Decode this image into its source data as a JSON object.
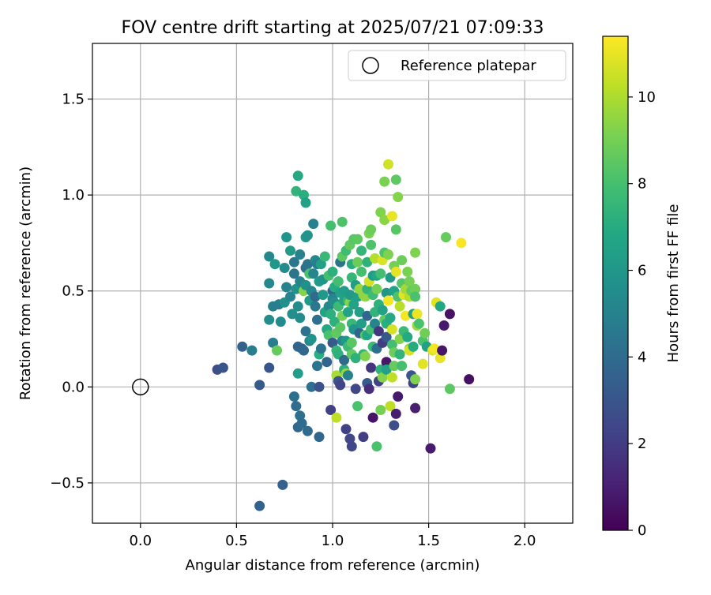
{
  "chart_data": {
    "type": "scatter",
    "title": "FOV centre drift starting at 2025/07/21 07:09:33",
    "xlabel": "Angular distance from reference (arcmin)",
    "ylabel": "Rotation from reference (arcmin)",
    "xlim": [
      -0.25,
      2.25
    ],
    "ylim": [
      -0.71,
      1.79
    ],
    "x_ticks": [
      "0.0",
      "0.5",
      "1.0",
      "1.5",
      "2.0"
    ],
    "y_ticks": [
      "−0.5",
      "0.0",
      "0.5",
      "1.0",
      "1.5"
    ],
    "grid": true,
    "legend": {
      "position": "top-right",
      "entries": [
        "Reference platepar"
      ]
    },
    "reference_point": {
      "x": 0.0,
      "y": 0.0,
      "marker": "open-circle"
    },
    "colorbar": {
      "label": "Hours from first FF file",
      "colormap": "viridis",
      "range": [
        0,
        11.4
      ],
      "ticks": [
        "0",
        "2",
        "4",
        "6",
        "8",
        "10"
      ]
    },
    "points": [
      {
        "x": 0.4,
        "y": 0.09,
        "h": 2.7
      },
      {
        "x": 0.43,
        "y": 0.1,
        "h": 3.0
      },
      {
        "x": 0.53,
        "y": 0.21,
        "h": 3.6
      },
      {
        "x": 0.58,
        "y": 0.19,
        "h": 4.8
      },
      {
        "x": 0.62,
        "y": 0.01,
        "h": 3.2
      },
      {
        "x": 0.62,
        "y": -0.62,
        "h": 3.6
      },
      {
        "x": 0.67,
        "y": 0.1,
        "h": 3.0
      },
      {
        "x": 0.67,
        "y": 0.35,
        "h": 5.5
      },
      {
        "x": 0.67,
        "y": 0.54,
        "h": 5.3
      },
      {
        "x": 0.67,
        "y": 0.68,
        "h": 5.3
      },
      {
        "x": 0.69,
        "y": 0.42,
        "h": 4.9
      },
      {
        "x": 0.69,
        "y": 0.23,
        "h": 4.8
      },
      {
        "x": 0.7,
        "y": 0.64,
        "h": 6.0
      },
      {
        "x": 0.71,
        "y": 0.19,
        "h": 8.7
      },
      {
        "x": 0.72,
        "y": 0.43,
        "h": 4.8
      },
      {
        "x": 0.73,
        "y": 0.34,
        "h": 5.4
      },
      {
        "x": 0.74,
        "y": -0.51,
        "h": 3.5
      },
      {
        "x": 0.75,
        "y": 0.44,
        "h": 5.7
      },
      {
        "x": 0.75,
        "y": 0.62,
        "h": 5.4
      },
      {
        "x": 0.76,
        "y": 0.52,
        "h": 5.0
      },
      {
        "x": 0.76,
        "y": 0.78,
        "h": 5.9
      },
      {
        "x": 0.78,
        "y": 0.71,
        "h": 6.2
      },
      {
        "x": 0.78,
        "y": 0.47,
        "h": 5.1
      },
      {
        "x": 0.79,
        "y": 0.38,
        "h": 5.6
      },
      {
        "x": 0.8,
        "y": 0.65,
        "h": 4.5
      },
      {
        "x": 0.8,
        "y": -0.05,
        "h": 4.2
      },
      {
        "x": 0.8,
        "y": 0.59,
        "h": 4.4
      },
      {
        "x": 0.81,
        "y": 1.02,
        "h": 7.4
      },
      {
        "x": 0.81,
        "y": -0.1,
        "h": 4.0
      },
      {
        "x": 0.81,
        "y": 0.51,
        "h": 5.8
      },
      {
        "x": 0.82,
        "y": 1.1,
        "h": 6.9
      },
      {
        "x": 0.82,
        "y": 0.42,
        "h": 5.5
      },
      {
        "x": 0.82,
        "y": -0.21,
        "h": 3.8
      },
      {
        "x": 0.82,
        "y": 0.07,
        "h": 6.3
      },
      {
        "x": 0.82,
        "y": 0.21,
        "h": 3.7
      },
      {
        "x": 0.83,
        "y": -0.15,
        "h": 4.1
      },
      {
        "x": 0.83,
        "y": 0.36,
        "h": 5.4
      },
      {
        "x": 0.83,
        "y": 0.69,
        "h": 5.0
      },
      {
        "x": 0.83,
        "y": 0.55,
        "h": 5.1
      },
      {
        "x": 0.84,
        "y": -0.19,
        "h": 4.0
      },
      {
        "x": 0.84,
        "y": 0.2,
        "h": 3.6
      },
      {
        "x": 0.85,
        "y": 0.19,
        "h": 3.8
      },
      {
        "x": 0.85,
        "y": 1.0,
        "h": 7.1
      },
      {
        "x": 0.85,
        "y": 0.5,
        "h": 9.3
      },
      {
        "x": 0.86,
        "y": 0.96,
        "h": 6.5
      },
      {
        "x": 0.86,
        "y": 0.78,
        "h": 6.1
      },
      {
        "x": 0.86,
        "y": 0.62,
        "h": 4.2
      },
      {
        "x": 0.86,
        "y": 0.29,
        "h": 4.3
      },
      {
        "x": 0.86,
        "y": 0.53,
        "h": 5.7
      },
      {
        "x": 0.87,
        "y": 0.79,
        "h": 5.8
      },
      {
        "x": 0.87,
        "y": -0.23,
        "h": 4.0
      },
      {
        "x": 0.87,
        "y": 0.64,
        "h": 4.4
      },
      {
        "x": 0.88,
        "y": 0.45,
        "h": 6.1
      },
      {
        "x": 0.88,
        "y": 0.24,
        "h": 5.1
      },
      {
        "x": 0.88,
        "y": 0.59,
        "h": 8.1
      },
      {
        "x": 0.89,
        "y": 0.5,
        "h": 5.3
      },
      {
        "x": 0.89,
        "y": 0.25,
        "h": 5.8
      },
      {
        "x": 0.89,
        "y": 0.0,
        "h": 4.1
      },
      {
        "x": 0.9,
        "y": 0.85,
        "h": 5.0
      },
      {
        "x": 0.9,
        "y": 0.59,
        "h": 5.1
      },
      {
        "x": 0.91,
        "y": 0.66,
        "h": 5.3
      },
      {
        "x": 0.91,
        "y": 0.47,
        "h": 3.9
      },
      {
        "x": 0.91,
        "y": 0.42,
        "h": 4.5
      },
      {
        "x": 0.92,
        "y": 0.64,
        "h": 4.8
      },
      {
        "x": 0.92,
        "y": 0.35,
        "h": 4.1
      },
      {
        "x": 0.92,
        "y": 0.11,
        "h": 4.4
      },
      {
        "x": 0.93,
        "y": 0.55,
        "h": 6.2
      },
      {
        "x": 0.93,
        "y": -0.26,
        "h": 3.8
      },
      {
        "x": 0.93,
        "y": 0.17,
        "h": 7.1
      },
      {
        "x": 0.93,
        "y": 0.0,
        "h": 2.8
      },
      {
        "x": 0.94,
        "y": 0.64,
        "h": 6.5
      },
      {
        "x": 0.94,
        "y": 0.2,
        "h": 4.4
      },
      {
        "x": 0.95,
        "y": 0.56,
        "h": 5.9
      },
      {
        "x": 0.95,
        "y": 0.48,
        "h": 6.1
      },
      {
        "x": 0.96,
        "y": 0.39,
        "h": 6.6
      },
      {
        "x": 0.96,
        "y": 0.68,
        "h": 7.6
      },
      {
        "x": 0.97,
        "y": 0.3,
        "h": 6.9
      },
      {
        "x": 0.97,
        "y": 0.13,
        "h": 3.7
      },
      {
        "x": 0.98,
        "y": 0.27,
        "h": 8.1
      },
      {
        "x": 0.98,
        "y": 0.58,
        "h": 8.0
      },
      {
        "x": 0.98,
        "y": 0.42,
        "h": 5.3
      },
      {
        "x": 0.99,
        "y": -0.12,
        "h": 2.2
      },
      {
        "x": 0.99,
        "y": 0.38,
        "h": 7.2
      },
      {
        "x": 0.99,
        "y": 0.84,
        "h": 8.0
      },
      {
        "x": 1.0,
        "y": 0.23,
        "h": 3.2
      },
      {
        "x": 1.0,
        "y": 0.6,
        "h": 7.2
      },
      {
        "x": 1.0,
        "y": 0.5,
        "h": 3.8
      },
      {
        "x": 1.0,
        "y": 0.46,
        "h": 5.2
      },
      {
        "x": 1.01,
        "y": 0.34,
        "h": 7.2
      },
      {
        "x": 1.01,
        "y": 0.44,
        "h": 5.6
      },
      {
        "x": 1.01,
        "y": 0.52,
        "h": 7.0
      },
      {
        "x": 1.02,
        "y": 0.19,
        "h": 7.5
      },
      {
        "x": 1.02,
        "y": -0.16,
        "h": 10.3
      },
      {
        "x": 1.02,
        "y": 0.28,
        "h": 8.6
      },
      {
        "x": 1.02,
        "y": 0.06,
        "h": 9.9
      },
      {
        "x": 1.03,
        "y": 0.17,
        "h": 7.3
      },
      {
        "x": 1.03,
        "y": 0.55,
        "h": 7.9
      },
      {
        "x": 1.03,
        "y": 0.42,
        "h": 7.7
      },
      {
        "x": 1.03,
        "y": 0.03,
        "h": 3.0
      },
      {
        "x": 1.04,
        "y": 0.01,
        "h": 2.3
      },
      {
        "x": 1.04,
        "y": 0.31,
        "h": 8.4
      },
      {
        "x": 1.04,
        "y": 0.49,
        "h": 6.6
      },
      {
        "x": 1.04,
        "y": 0.65,
        "h": 4.4
      },
      {
        "x": 1.05,
        "y": 0.68,
        "h": 8.5
      },
      {
        "x": 1.05,
        "y": 0.24,
        "h": 5.2
      },
      {
        "x": 1.05,
        "y": 0.86,
        "h": 8.2
      },
      {
        "x": 1.05,
        "y": 0.37,
        "h": 9.0
      },
      {
        "x": 1.06,
        "y": 0.5,
        "h": 6.3
      },
      {
        "x": 1.06,
        "y": 0.09,
        "h": 7.2
      },
      {
        "x": 1.06,
        "y": 0.45,
        "h": 6.5
      },
      {
        "x": 1.06,
        "y": 0.14,
        "h": 3.9
      },
      {
        "x": 1.07,
        "y": 0.07,
        "h": 9.6
      },
      {
        "x": 1.07,
        "y": -0.22,
        "h": 2.2
      },
      {
        "x": 1.07,
        "y": 0.24,
        "h": 6.1
      },
      {
        "x": 1.07,
        "y": 0.71,
        "h": 7.8
      },
      {
        "x": 1.08,
        "y": 0.39,
        "h": 6.6
      },
      {
        "x": 1.08,
        "y": 0.45,
        "h": 7.5
      },
      {
        "x": 1.08,
        "y": 0.06,
        "h": 5.0
      },
      {
        "x": 1.08,
        "y": 0.21,
        "h": 7.7
      },
      {
        "x": 1.09,
        "y": 0.74,
        "h": 8.6
      },
      {
        "x": 1.09,
        "y": 0.44,
        "h": 9.3
      },
      {
        "x": 1.09,
        "y": -0.27,
        "h": 2.5
      },
      {
        "x": 1.09,
        "y": 0.48,
        "h": 6.2
      },
      {
        "x": 1.1,
        "y": 0.64,
        "h": 7.1
      },
      {
        "x": 1.1,
        "y": -0.31,
        "h": 2.4
      },
      {
        "x": 1.1,
        "y": 0.23,
        "h": 8.4
      },
      {
        "x": 1.1,
        "y": 0.33,
        "h": 7.6
      },
      {
        "x": 1.1,
        "y": 0.17,
        "h": 8.6
      },
      {
        "x": 1.1,
        "y": 0.57,
        "h": 7.5
      },
      {
        "x": 1.11,
        "y": 0.43,
        "h": 6.6
      },
      {
        "x": 1.11,
        "y": 0.3,
        "h": 5.9
      },
      {
        "x": 1.11,
        "y": 0.77,
        "h": 8.4
      },
      {
        "x": 1.12,
        "y": -0.01,
        "h": 2.4
      },
      {
        "x": 1.12,
        "y": 0.53,
        "h": 6.3
      },
      {
        "x": 1.12,
        "y": 0.15,
        "h": 7.2
      },
      {
        "x": 1.13,
        "y": 0.77,
        "h": 8.5
      },
      {
        "x": 1.13,
        "y": 0.65,
        "h": 8.8
      },
      {
        "x": 1.13,
        "y": 0.47,
        "h": 6.4
      },
      {
        "x": 1.13,
        "y": -0.1,
        "h": 8.1
      },
      {
        "x": 1.14,
        "y": 0.28,
        "h": 3.7
      },
      {
        "x": 1.14,
        "y": 0.51,
        "h": 9.6
      },
      {
        "x": 1.14,
        "y": 0.39,
        "h": 6.4
      },
      {
        "x": 1.15,
        "y": 0.6,
        "h": 8.0
      },
      {
        "x": 1.15,
        "y": 0.71,
        "h": 7.5
      },
      {
        "x": 1.15,
        "y": 0.33,
        "h": 6.3
      },
      {
        "x": 1.16,
        "y": 0.48,
        "h": 9.5
      },
      {
        "x": 1.16,
        "y": -0.26,
        "h": 2.1
      },
      {
        "x": 1.16,
        "y": 0.17,
        "h": 7.3
      },
      {
        "x": 1.17,
        "y": 0.47,
        "h": 9.5
      },
      {
        "x": 1.17,
        "y": 0.27,
        "h": 8.4
      },
      {
        "x": 1.17,
        "y": 0.16,
        "h": 9.2
      },
      {
        "x": 1.18,
        "y": 0.27,
        "h": 6.7
      },
      {
        "x": 1.18,
        "y": 0.51,
        "h": 7.4
      },
      {
        "x": 1.18,
        "y": 0.37,
        "h": 3.7
      },
      {
        "x": 1.18,
        "y": 0.02,
        "h": 3.3
      },
      {
        "x": 1.18,
        "y": 0.65,
        "h": 7.3
      },
      {
        "x": 1.19,
        "y": 0.55,
        "h": 10.6
      },
      {
        "x": 1.19,
        "y": 0.8,
        "h": 9.1
      },
      {
        "x": 1.19,
        "y": -0.01,
        "h": 1.5
      },
      {
        "x": 1.2,
        "y": 0.74,
        "h": 8.2
      },
      {
        "x": 1.2,
        "y": 0.3,
        "h": 7.9
      },
      {
        "x": 1.2,
        "y": 0.1,
        "h": 1.7
      },
      {
        "x": 1.2,
        "y": 0.82,
        "h": 8.8
      },
      {
        "x": 1.21,
        "y": 0.21,
        "h": 7.7
      },
      {
        "x": 1.21,
        "y": 0.48,
        "h": 7.8
      },
      {
        "x": 1.21,
        "y": 0.58,
        "h": 6.2
      },
      {
        "x": 1.21,
        "y": -0.16,
        "h": 0.6
      },
      {
        "x": 1.22,
        "y": 0.67,
        "h": 10.1
      },
      {
        "x": 1.22,
        "y": 0.39,
        "h": 7.4
      },
      {
        "x": 1.22,
        "y": 0.33,
        "h": 5.1
      },
      {
        "x": 1.23,
        "y": 0.51,
        "h": 9.0
      },
      {
        "x": 1.23,
        "y": 0.2,
        "h": 4.1
      },
      {
        "x": 1.23,
        "y": -0.31,
        "h": 8.1
      },
      {
        "x": 1.23,
        "y": 0.58,
        "h": 6.8
      },
      {
        "x": 1.24,
        "y": 0.43,
        "h": 7.3
      },
      {
        "x": 1.24,
        "y": 0.03,
        "h": 2.3
      },
      {
        "x": 1.24,
        "y": 0.29,
        "h": 1.8
      },
      {
        "x": 1.25,
        "y": -0.12,
        "h": 9.0
      },
      {
        "x": 1.25,
        "y": 0.91,
        "h": 9.2
      },
      {
        "x": 1.25,
        "y": 0.59,
        "h": 7.9
      },
      {
        "x": 1.25,
        "y": 0.09,
        "h": 7.3
      },
      {
        "x": 1.26,
        "y": 0.4,
        "h": 6.6
      },
      {
        "x": 1.26,
        "y": 0.66,
        "h": 10.8
      },
      {
        "x": 1.26,
        "y": 0.23,
        "h": 2.0
      },
      {
        "x": 1.26,
        "y": 0.05,
        "h": 9.3
      },
      {
        "x": 1.27,
        "y": 0.87,
        "h": 9.4
      },
      {
        "x": 1.27,
        "y": 0.7,
        "h": 8.2
      },
      {
        "x": 1.27,
        "y": 0.35,
        "h": 8.6
      },
      {
        "x": 1.27,
        "y": 1.07,
        "h": 9.1
      },
      {
        "x": 1.28,
        "y": 0.13,
        "h": 0.7
      },
      {
        "x": 1.28,
        "y": 0.26,
        "h": 3.2
      },
      {
        "x": 1.28,
        "y": 0.49,
        "h": 6.0
      },
      {
        "x": 1.28,
        "y": 0.09,
        "h": 6.5
      },
      {
        "x": 1.28,
        "y": 0.33,
        "h": 7.1
      },
      {
        "x": 1.29,
        "y": 0.69,
        "h": 9.2
      },
      {
        "x": 1.29,
        "y": 1.16,
        "h": 10.6
      },
      {
        "x": 1.29,
        "y": 0.45,
        "h": 11.2
      },
      {
        "x": 1.3,
        "y": 0.57,
        "h": 6.2
      },
      {
        "x": 1.3,
        "y": -0.1,
        "h": 10.3
      },
      {
        "x": 1.3,
        "y": 0.36,
        "h": 6.9
      },
      {
        "x": 1.31,
        "y": 0.89,
        "h": 11.0
      },
      {
        "x": 1.31,
        "y": 0.22,
        "h": 7.9
      },
      {
        "x": 1.31,
        "y": 0.3,
        "h": 10.7
      },
      {
        "x": 1.31,
        "y": 0.05,
        "h": 10.3
      },
      {
        "x": 1.32,
        "y": 0.18,
        "h": 8.8
      },
      {
        "x": 1.32,
        "y": -0.2,
        "h": 2.7
      },
      {
        "x": 1.32,
        "y": 0.11,
        "h": 8.7
      },
      {
        "x": 1.32,
        "y": 0.63,
        "h": 9.0
      },
      {
        "x": 1.32,
        "y": 0.5,
        "h": 6.6
      },
      {
        "x": 1.33,
        "y": 0.82,
        "h": 8.4
      },
      {
        "x": 1.33,
        "y": 1.08,
        "h": 8.5
      },
      {
        "x": 1.33,
        "y": 0.6,
        "h": 11.0
      },
      {
        "x": 1.33,
        "y": -0.14,
        "h": 0.9
      },
      {
        "x": 1.34,
        "y": 0.99,
        "h": 9.3
      },
      {
        "x": 1.34,
        "y": 0.47,
        "h": 8.2
      },
      {
        "x": 1.34,
        "y": -0.05,
        "h": 0.8
      },
      {
        "x": 1.35,
        "y": 0.25,
        "h": 9.3
      },
      {
        "x": 1.35,
        "y": 0.17,
        "h": 7.4
      },
      {
        "x": 1.35,
        "y": 0.42,
        "h": 10.2
      },
      {
        "x": 1.36,
        "y": 0.66,
        "h": 8.8
      },
      {
        "x": 1.36,
        "y": 0.54,
        "h": 8.3
      },
      {
        "x": 1.36,
        "y": 0.11,
        "h": 8.0
      },
      {
        "x": 1.37,
        "y": 0.29,
        "h": 7.7
      },
      {
        "x": 1.37,
        "y": 0.48,
        "h": 10.9
      },
      {
        "x": 1.38,
        "y": 0.51,
        "h": 9.8
      },
      {
        "x": 1.38,
        "y": 0.37,
        "h": 11.2
      },
      {
        "x": 1.39,
        "y": 0.26,
        "h": 6.9
      },
      {
        "x": 1.39,
        "y": 0.6,
        "h": 9.1
      },
      {
        "x": 1.4,
        "y": 0.47,
        "h": 10.1
      },
      {
        "x": 1.4,
        "y": 0.2,
        "h": 9.5
      },
      {
        "x": 1.4,
        "y": 0.19,
        "h": 10.7
      },
      {
        "x": 1.4,
        "y": 0.55,
        "h": 9.0
      },
      {
        "x": 1.41,
        "y": 0.06,
        "h": 3.0
      },
      {
        "x": 1.41,
        "y": 0.5,
        "h": 8.6
      },
      {
        "x": 1.42,
        "y": 0.21,
        "h": 7.0
      },
      {
        "x": 1.42,
        "y": 0.38,
        "h": 6.5
      },
      {
        "x": 1.42,
        "y": 0.02,
        "h": 2.2
      },
      {
        "x": 1.43,
        "y": 0.7,
        "h": 9.2
      },
      {
        "x": 1.43,
        "y": 0.51,
        "h": 8.9
      },
      {
        "x": 1.43,
        "y": 0.47,
        "h": 8.1
      },
      {
        "x": 1.43,
        "y": -0.11,
        "h": 1.0
      },
      {
        "x": 1.43,
        "y": 0.04,
        "h": 9.2
      },
      {
        "x": 1.44,
        "y": 0.32,
        "h": 9.7
      },
      {
        "x": 1.44,
        "y": 0.38,
        "h": 11.1
      },
      {
        "x": 1.45,
        "y": 0.33,
        "h": 8.1
      },
      {
        "x": 1.47,
        "y": 0.24,
        "h": 8.1
      },
      {
        "x": 1.47,
        "y": 0.12,
        "h": 10.9
      },
      {
        "x": 1.48,
        "y": 0.28,
        "h": 8.9
      },
      {
        "x": 1.49,
        "y": 0.21,
        "h": 6.5
      },
      {
        "x": 1.51,
        "y": -0.32,
        "h": 0.8
      },
      {
        "x": 1.52,
        "y": 0.19,
        "h": 10.9
      },
      {
        "x": 1.53,
        "y": 0.2,
        "h": 11.2
      },
      {
        "x": 1.54,
        "y": 0.44,
        "h": 10.9
      },
      {
        "x": 1.56,
        "y": 0.42,
        "h": 6.8
      },
      {
        "x": 1.56,
        "y": 0.15,
        "h": 11.0
      },
      {
        "x": 1.57,
        "y": 0.19,
        "h": 0.7
      },
      {
        "x": 1.58,
        "y": 0.32,
        "h": 0.8
      },
      {
        "x": 1.59,
        "y": 0.78,
        "h": 8.7
      },
      {
        "x": 1.61,
        "y": 0.38,
        "h": 0.6
      },
      {
        "x": 1.61,
        "y": -0.01,
        "h": 8.5
      },
      {
        "x": 1.67,
        "y": 0.75,
        "h": 11.3
      },
      {
        "x": 1.71,
        "y": 0.04,
        "h": 0.5
      }
    ]
  }
}
